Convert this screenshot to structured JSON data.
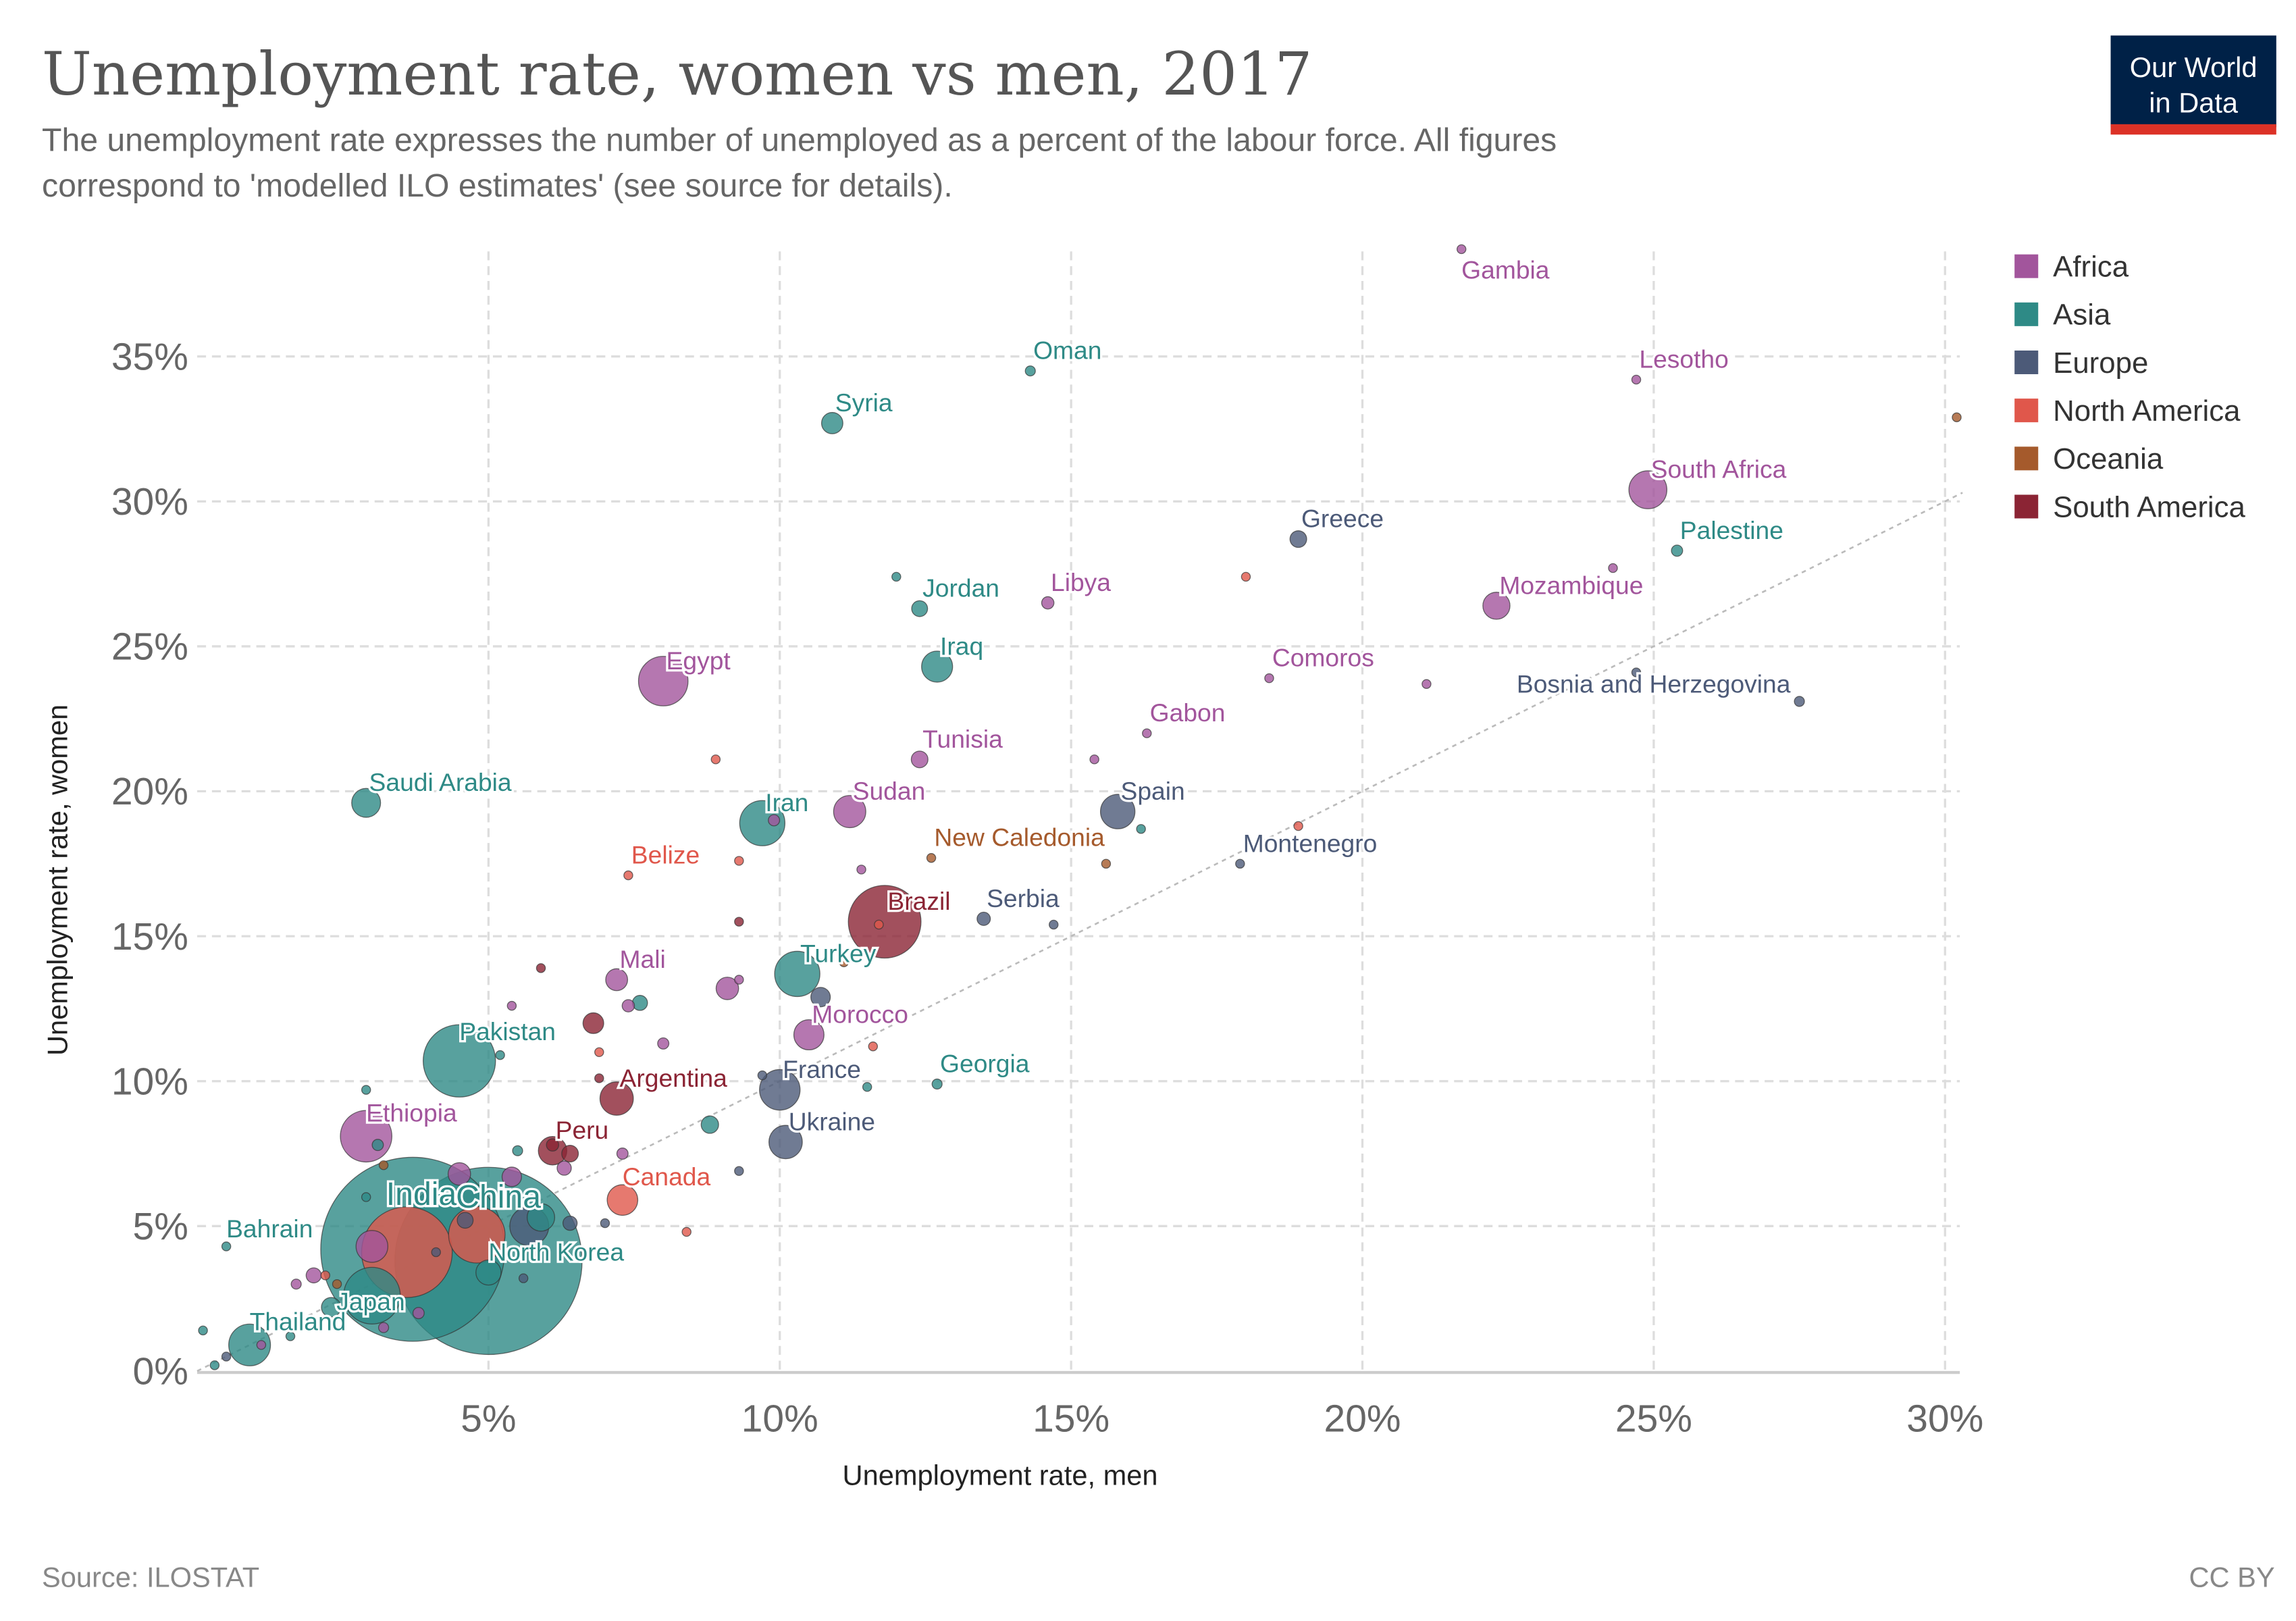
{
  "header": {
    "title": "Unemployment rate, women vs men, 2017",
    "subtitle_line1": "The unemployment rate expresses the number of unemployed as a percent of the labour force. All figures",
    "subtitle_line2": "correspond to 'modelled ILO estimates' (see source for details).",
    "logo_line1": "Our World",
    "logo_line2": "in Data"
  },
  "footer": {
    "source": "Source: ILOSTAT",
    "license": "CC BY"
  },
  "colors": {
    "Africa": "#a2559c",
    "Asia": "#2e8a86",
    "Europe": "#4c5a78",
    "North America": "#e0574b",
    "Oceania": "#a55a2c",
    "South America": "#8b2434",
    "logo_bg": "#002147",
    "logo_bar": "#dc3227"
  },
  "chart_data": {
    "type": "scatter",
    "title": "Unemployment rate, women vs men, 2017",
    "xlabel": "Unemployment rate, men",
    "ylabel": "Unemployment rate, women",
    "xlim": [
      0,
      30.3
    ],
    "ylim": [
      0,
      38.8
    ],
    "xticks": [
      5,
      10,
      15,
      20,
      25,
      30
    ],
    "yticks": [
      0,
      5,
      10,
      15,
      20,
      25,
      30,
      35
    ],
    "xtick_labels": [
      "5%",
      "10%",
      "15%",
      "20%",
      "25%",
      "30%"
    ],
    "ytick_labels": [
      "0%",
      "5%",
      "10%",
      "15%",
      "20%",
      "25%",
      "30%",
      "35%"
    ],
    "grid": true,
    "reference_line": "y = x",
    "size_encoding": "population (millions)",
    "legend": [
      "Africa",
      "Asia",
      "Europe",
      "North America",
      "Oceania",
      "South America"
    ],
    "legend_position": "right",
    "points": [
      {
        "name": "Gambia",
        "region": "Africa",
        "x": 21.7,
        "y": 38.7,
        "pop": 2,
        "label": true
      },
      {
        "name": "Oman",
        "region": "Asia",
        "x": 14.3,
        "y": 34.5,
        "pop": 4,
        "label": true
      },
      {
        "name": "Lesotho",
        "region": "Africa",
        "x": 24.7,
        "y": 34.2,
        "pop": 2,
        "label": true
      },
      {
        "name": "Syria",
        "region": "Asia",
        "x": 10.9,
        "y": 32.7,
        "pop": 18,
        "label": true
      },
      {
        "name": "South Africa",
        "region": "Africa",
        "x": 24.9,
        "y": 30.4,
        "pop": 57,
        "label": true
      },
      {
        "name": "Greece",
        "region": "Europe",
        "x": 18.9,
        "y": 28.7,
        "pop": 11,
        "label": true
      },
      {
        "name": "Palestine",
        "region": "Asia",
        "x": 25.4,
        "y": 28.3,
        "pop": 5,
        "label": true
      },
      {
        "name": "Jordan",
        "region": "Asia",
        "x": 12.4,
        "y": 26.3,
        "pop": 10,
        "label": true
      },
      {
        "name": "Libya",
        "region": "Africa",
        "x": 14.6,
        "y": 26.5,
        "pop": 6,
        "label": true
      },
      {
        "name": "Mozambique",
        "region": "Africa",
        "x": 22.3,
        "y": 26.4,
        "pop": 29,
        "label": true
      },
      {
        "name": "Iraq",
        "region": "Asia",
        "x": 12.7,
        "y": 24.3,
        "pop": 38,
        "label": true
      },
      {
        "name": "Egypt",
        "region": "Africa",
        "x": 8.0,
        "y": 23.8,
        "pop": 97,
        "label": true
      },
      {
        "name": "Comoros",
        "region": "Africa",
        "x": 18.4,
        "y": 23.9,
        "pop": 1,
        "label": true
      },
      {
        "name": "Bosnia and Herzegovina",
        "region": "Europe",
        "x": 27.5,
        "y": 23.1,
        "pop": 4,
        "label": true
      },
      {
        "name": "Gabon",
        "region": "Africa",
        "x": 16.3,
        "y": 22.0,
        "pop": 2,
        "label": true
      },
      {
        "name": "Tunisia",
        "region": "Africa",
        "x": 12.4,
        "y": 21.1,
        "pop": 11,
        "label": true
      },
      {
        "name": "Saudi Arabia",
        "region": "Asia",
        "x": 2.9,
        "y": 19.6,
        "pop": 33,
        "label": true
      },
      {
        "name": "Iran",
        "region": "Asia",
        "x": 9.7,
        "y": 18.9,
        "pop": 81,
        "label": true
      },
      {
        "name": "Sudan",
        "region": "Africa",
        "x": 11.2,
        "y": 19.3,
        "pop": 41,
        "label": true
      },
      {
        "name": "Spain",
        "region": "Europe",
        "x": 15.8,
        "y": 19.3,
        "pop": 47,
        "label": true
      },
      {
        "name": "New Caledonia",
        "region": "Oceania",
        "x": 12.6,
        "y": 17.7,
        "pop": 0.3,
        "label": true
      },
      {
        "name": "Belize",
        "region": "North America",
        "x": 7.4,
        "y": 17.1,
        "pop": 0.4,
        "label": true
      },
      {
        "name": "Montenegro",
        "region": "Europe",
        "x": 17.9,
        "y": 17.5,
        "pop": 0.6,
        "label": true
      },
      {
        "name": "Brazil",
        "region": "South America",
        "x": 11.8,
        "y": 15.5,
        "pop": 209,
        "label": true
      },
      {
        "name": "Serbia",
        "region": "Europe",
        "x": 13.5,
        "y": 15.6,
        "pop": 7,
        "label": true
      },
      {
        "name": "Mali",
        "region": "Africa",
        "x": 7.2,
        "y": 13.5,
        "pop": 19,
        "label": true
      },
      {
        "name": "Turkey",
        "region": "Asia",
        "x": 10.3,
        "y": 13.7,
        "pop": 81,
        "label": true
      },
      {
        "name": "Pakistan",
        "region": "Asia",
        "x": 4.5,
        "y": 10.7,
        "pop": 207,
        "label": true
      },
      {
        "name": "Morocco",
        "region": "Africa",
        "x": 10.5,
        "y": 11.6,
        "pop": 36,
        "label": true
      },
      {
        "name": "Argentina",
        "region": "South America",
        "x": 7.2,
        "y": 9.4,
        "pop": 44,
        "label": true
      },
      {
        "name": "France",
        "region": "Europe",
        "x": 10.0,
        "y": 9.7,
        "pop": 65,
        "label": true
      },
      {
        "name": "Georgia",
        "region": "Asia",
        "x": 12.7,
        "y": 9.9,
        "pop": 4,
        "label": true
      },
      {
        "name": "Ethiopia",
        "region": "Africa",
        "x": 2.9,
        "y": 8.1,
        "pop": 105,
        "label": true
      },
      {
        "name": "Ukraine",
        "region": "Europe",
        "x": 10.1,
        "y": 7.9,
        "pop": 44,
        "label": true
      },
      {
        "name": "Peru",
        "region": "South America",
        "x": 6.1,
        "y": 7.6,
        "pop": 32,
        "label": true
      },
      {
        "name": "Canada",
        "region": "North America",
        "x": 7.3,
        "y": 5.9,
        "pop": 37,
        "label": true
      },
      {
        "name": "India",
        "region": "Asia",
        "x": 3.7,
        "y": 4.2,
        "pop": 1339,
        "label": true
      },
      {
        "name": "China",
        "region": "Asia",
        "x": 5.0,
        "y": 3.8,
        "pop": 1386,
        "label": true
      },
      {
        "name": "Bahrain",
        "region": "Asia",
        "x": 0.5,
        "y": 4.3,
        "pop": 1.5,
        "label": true
      },
      {
        "name": "Japan",
        "region": "Asia",
        "x": 3.0,
        "y": 2.6,
        "pop": 127,
        "label": true
      },
      {
        "name": "North Korea",
        "region": "Asia",
        "x": 5.0,
        "y": 3.4,
        "pop": 25,
        "label": true
      },
      {
        "name": "Thailand",
        "region": "Asia",
        "x": 0.9,
        "y": 0.9,
        "pop": 69,
        "label": true
      },
      {
        "name": "",
        "region": "Oceania",
        "x": 30.2,
        "y": 32.9,
        "pop": 1
      },
      {
        "name": "",
        "region": "Asia",
        "x": 12.0,
        "y": 27.4,
        "pop": 1.5
      },
      {
        "name": "",
        "region": "North America",
        "x": 18.0,
        "y": 27.4,
        "pop": 1
      },
      {
        "name": "",
        "region": "Africa",
        "x": 24.3,
        "y": 27.7,
        "pop": 1
      },
      {
        "name": "",
        "region": "Africa",
        "x": 21.1,
        "y": 23.7,
        "pop": 2
      },
      {
        "name": "",
        "region": "Europe",
        "x": 24.7,
        "y": 24.1,
        "pop": 0.5
      },
      {
        "name": "",
        "region": "Africa",
        "x": 15.4,
        "y": 21.1,
        "pop": 2
      },
      {
        "name": "",
        "region": "North America",
        "x": 8.9,
        "y": 21.1,
        "pop": 3
      },
      {
        "name": "",
        "region": "Asia",
        "x": 16.2,
        "y": 18.7,
        "pop": 3
      },
      {
        "name": "",
        "region": "North America",
        "x": 18.9,
        "y": 18.8,
        "pop": 1
      },
      {
        "name": "",
        "region": "Oceania",
        "x": 15.6,
        "y": 17.5,
        "pop": 1.5
      },
      {
        "name": "",
        "region": "North America",
        "x": 9.3,
        "y": 17.6,
        "pop": 1
      },
      {
        "name": "",
        "region": "Africa",
        "x": 11.4,
        "y": 17.3,
        "pop": 1
      },
      {
        "name": "",
        "region": "Africa",
        "x": 9.9,
        "y": 19.0,
        "pop": 5
      },
      {
        "name": "",
        "region": "Europe",
        "x": 14.7,
        "y": 15.4,
        "pop": 2
      },
      {
        "name": "",
        "region": "South America",
        "x": 9.3,
        "y": 15.5,
        "pop": 1
      },
      {
        "name": "",
        "region": "North America",
        "x": 11.7,
        "y": 15.4,
        "pop": 3
      },
      {
        "name": "",
        "region": "South America",
        "x": 5.9,
        "y": 13.9,
        "pop": 1
      },
      {
        "name": "",
        "region": "Africa",
        "x": 9.1,
        "y": 13.2,
        "pop": 20
      },
      {
        "name": "",
        "region": "Africa",
        "x": 9.3,
        "y": 13.5,
        "pop": 2
      },
      {
        "name": "",
        "region": "Asia",
        "x": 7.6,
        "y": 12.7,
        "pop": 9
      },
      {
        "name": "",
        "region": "Africa",
        "x": 7.4,
        "y": 12.6,
        "pop": 6
      },
      {
        "name": "",
        "region": "Africa",
        "x": 5.4,
        "y": 12.6,
        "pop": 1
      },
      {
        "name": "",
        "region": "South America",
        "x": 6.8,
        "y": 12.0,
        "pop": 17
      },
      {
        "name": "",
        "region": "Europe",
        "x": 10.7,
        "y": 12.9,
        "pop": 15
      },
      {
        "name": "",
        "region": "Africa",
        "x": 8.0,
        "y": 11.3,
        "pop": 5
      },
      {
        "name": "",
        "region": "Asia",
        "x": 5.2,
        "y": 10.9,
        "pop": 2
      },
      {
        "name": "",
        "region": "North America",
        "x": 11.6,
        "y": 11.2,
        "pop": 1
      },
      {
        "name": "",
        "region": "North America",
        "x": 6.9,
        "y": 11.0,
        "pop": 1
      },
      {
        "name": "",
        "region": "Oceania",
        "x": 11.1,
        "y": 14.1,
        "pop": 0.5
      },
      {
        "name": "",
        "region": "Europe",
        "x": 9.7,
        "y": 10.2,
        "pop": 3
      },
      {
        "name": "",
        "region": "Asia",
        "x": 11.5,
        "y": 9.8,
        "pop": 2
      },
      {
        "name": "",
        "region": "Asia",
        "x": 2.9,
        "y": 9.7,
        "pop": 2
      },
      {
        "name": "",
        "region": "South America",
        "x": 6.9,
        "y": 10.1,
        "pop": 2
      },
      {
        "name": "",
        "region": "Asia",
        "x": 8.8,
        "y": 8.5,
        "pop": 12
      },
      {
        "name": "",
        "region": "Asia",
        "x": 3.1,
        "y": 7.8,
        "pop": 5
      },
      {
        "name": "",
        "region": "Africa",
        "x": 7.3,
        "y": 7.5,
        "pop": 5
      },
      {
        "name": "",
        "region": "South America",
        "x": 6.4,
        "y": 7.5,
        "pop": 11
      },
      {
        "name": "",
        "region": "South America",
        "x": 6.1,
        "y": 7.8,
        "pop": 6
      },
      {
        "name": "",
        "region": "Europe",
        "x": 9.3,
        "y": 6.9,
        "pop": 2
      },
      {
        "name": "",
        "region": "North America",
        "x": 8.4,
        "y": 4.8,
        "pop": 3
      },
      {
        "name": "",
        "region": "Europe",
        "x": 7.0,
        "y": 5.1,
        "pop": 3
      },
      {
        "name": "",
        "region": "Europe",
        "x": 6.4,
        "y": 5.1,
        "pop": 8
      },
      {
        "name": "",
        "region": "Europe",
        "x": 5.7,
        "y": 5.0,
        "pop": 60
      },
      {
        "name": "",
        "region": "North America",
        "x": 4.8,
        "y": 4.7,
        "pop": 126
      },
      {
        "name": "",
        "region": "North America",
        "x": 3.6,
        "y": 4.1,
        "pop": 325
      },
      {
        "name": "",
        "region": "Africa",
        "x": 5.4,
        "y": 6.7,
        "pop": 15
      },
      {
        "name": "",
        "region": "Africa",
        "x": 4.5,
        "y": 6.8,
        "pop": 20
      },
      {
        "name": "",
        "region": "Asia",
        "x": 5.5,
        "y": 7.6,
        "pop": 4
      },
      {
        "name": "",
        "region": "Africa",
        "x": 6.3,
        "y": 7.0,
        "pop": 8
      },
      {
        "name": "",
        "region": "Europe",
        "x": 4.6,
        "y": 5.2,
        "pop": 10
      },
      {
        "name": "",
        "region": "Asia",
        "x": 5.9,
        "y": 5.3,
        "pop": 30
      },
      {
        "name": "",
        "region": "Africa",
        "x": 3.0,
        "y": 4.3,
        "pop": 40
      },
      {
        "name": "",
        "region": "Asia",
        "x": 2.9,
        "y": 6.0,
        "pop": 3
      },
      {
        "name": "",
        "region": "Oceania",
        "x": 3.2,
        "y": 7.1,
        "pop": 1
      },
      {
        "name": "",
        "region": "Asia",
        "x": 0.1,
        "y": 1.4,
        "pop": 1
      },
      {
        "name": "",
        "region": "Asia",
        "x": 0.3,
        "y": 0.2,
        "pop": 3
      },
      {
        "name": "",
        "region": "Europe",
        "x": 0.5,
        "y": 0.5,
        "pop": 2
      },
      {
        "name": "",
        "region": "Africa",
        "x": 1.1,
        "y": 0.9,
        "pop": 2
      },
      {
        "name": "",
        "region": "Africa",
        "x": 3.2,
        "y": 1.5,
        "pop": 4
      },
      {
        "name": "",
        "region": "Africa",
        "x": 3.8,
        "y": 2.0,
        "pop": 5
      },
      {
        "name": "",
        "region": "Africa",
        "x": 2.0,
        "y": 3.3,
        "pop": 9
      },
      {
        "name": "",
        "region": "North America",
        "x": 2.2,
        "y": 3.3,
        "pop": 2
      },
      {
        "name": "",
        "region": "Africa",
        "x": 1.7,
        "y": 3.0,
        "pop": 4
      },
      {
        "name": "",
        "region": "Asia",
        "x": 1.6,
        "y": 1.2,
        "pop": 2
      },
      {
        "name": "",
        "region": "Asia",
        "x": 2.3,
        "y": 2.2,
        "pop": 15
      },
      {
        "name": "",
        "region": "Oceania",
        "x": 2.4,
        "y": 3.0,
        "pop": 2
      },
      {
        "name": "",
        "region": "Europe",
        "x": 4.1,
        "y": 4.1,
        "pop": 2
      },
      {
        "name": "",
        "region": "Europe",
        "x": 5.6,
        "y": 3.2,
        "pop": 2
      }
    ]
  }
}
